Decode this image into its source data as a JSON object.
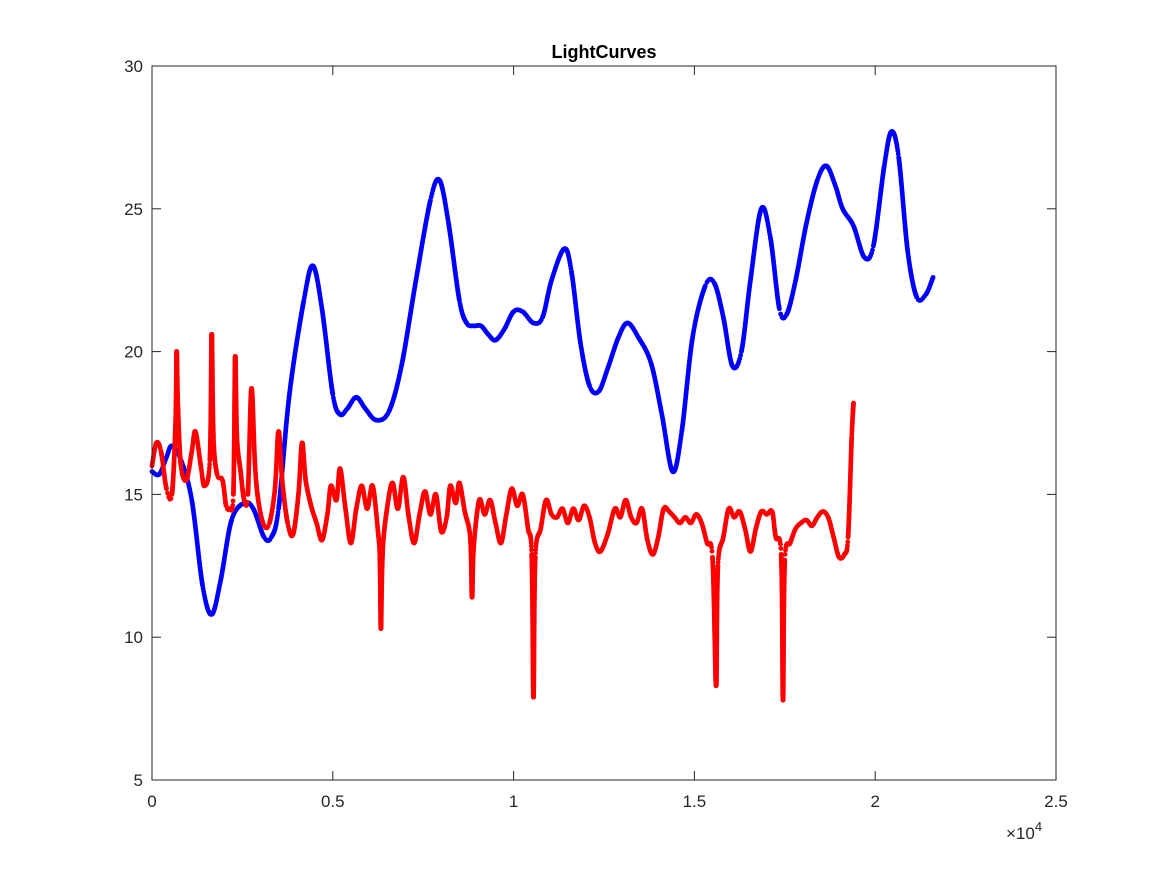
{
  "chart_data": {
    "type": "scatter",
    "title": "LightCurves",
    "xlabel": "",
    "ylabel": "",
    "xlim": [
      0,
      25000
    ],
    "ylim": [
      5,
      30
    ],
    "x_exponent_label": "×10",
    "x_exponent_power": "4",
    "x_ticks": [
      0,
      5000,
      10000,
      15000,
      20000,
      25000
    ],
    "x_tick_labels": [
      "0",
      "0.5",
      "1",
      "1.5",
      "2",
      "2.5"
    ],
    "y_ticks": [
      5,
      10,
      15,
      20,
      25,
      30
    ],
    "y_tick_labels": [
      "5",
      "10",
      "15",
      "20",
      "25",
      "30"
    ],
    "grid": false,
    "box": true,
    "series": [
      {
        "color": "#0000ff",
        "marker": "dot",
        "points": [
          [
            0,
            15.8
          ],
          [
            200,
            15.7
          ],
          [
            400,
            16.3
          ],
          [
            550,
            16.7
          ],
          [
            800,
            16.2
          ],
          [
            1100,
            14.8
          ],
          [
            1400,
            11.8
          ],
          [
            1650,
            10.8
          ],
          [
            1900,
            12.0
          ],
          [
            2200,
            14.1
          ],
          [
            2550,
            14.7
          ],
          [
            2800,
            14.5
          ],
          [
            3100,
            13.5
          ],
          [
            3300,
            13.5
          ],
          [
            3500,
            14.5
          ],
          [
            3800,
            18.5
          ],
          [
            4200,
            21.8
          ],
          [
            4450,
            23.0
          ],
          [
            4700,
            21.5
          ],
          [
            5000,
            18.5
          ],
          [
            5200,
            17.8
          ],
          [
            5400,
            18.0
          ],
          [
            5650,
            18.4
          ],
          [
            5900,
            18.0
          ],
          [
            6200,
            17.6
          ],
          [
            6550,
            17.9
          ],
          [
            6900,
            19.5
          ],
          [
            7300,
            22.5
          ],
          [
            7700,
            25.3
          ],
          [
            7950,
            26.0
          ],
          [
            8200,
            24.5
          ],
          [
            8500,
            21.8
          ],
          [
            8700,
            21.0
          ],
          [
            8900,
            20.9
          ],
          [
            9100,
            20.9
          ],
          [
            9300,
            20.6
          ],
          [
            9500,
            20.4
          ],
          [
            9750,
            20.8
          ],
          [
            10000,
            21.4
          ],
          [
            10250,
            21.4
          ],
          [
            10550,
            21.0
          ],
          [
            10800,
            21.2
          ],
          [
            11050,
            22.5
          ],
          [
            11400,
            23.6
          ],
          [
            11600,
            22.8
          ],
          [
            11850,
            20.3
          ],
          [
            12100,
            18.8
          ],
          [
            12350,
            18.6
          ],
          [
            12600,
            19.4
          ],
          [
            12900,
            20.5
          ],
          [
            13150,
            21.0
          ],
          [
            13450,
            20.5
          ],
          [
            13800,
            19.6
          ],
          [
            14100,
            17.8
          ],
          [
            14400,
            15.8
          ],
          [
            14650,
            17.2
          ],
          [
            14950,
            20.5
          ],
          [
            15300,
            22.3
          ],
          [
            15550,
            22.4
          ],
          [
            15800,
            21.2
          ],
          [
            16050,
            19.5
          ],
          [
            16300,
            20.0
          ],
          [
            16550,
            22.5
          ],
          [
            16850,
            25.0
          ],
          [
            17100,
            24.0
          ],
          [
            17350,
            21.5
          ],
          [
            17550,
            21.3
          ],
          [
            17800,
            22.5
          ],
          [
            18100,
            24.5
          ],
          [
            18400,
            26.0
          ],
          [
            18650,
            26.5
          ],
          [
            18900,
            25.8
          ],
          [
            19100,
            25.0
          ],
          [
            19400,
            24.4
          ],
          [
            19700,
            23.3
          ],
          [
            19950,
            23.7
          ],
          [
            20250,
            26.5
          ],
          [
            20450,
            27.7
          ],
          [
            20650,
            26.8
          ],
          [
            20900,
            23.5
          ],
          [
            21150,
            21.9
          ],
          [
            21400,
            22.0
          ],
          [
            21600,
            22.6
          ]
        ]
      },
      {
        "color": "#ff0000",
        "marker": "dot",
        "points": [
          [
            0,
            16.0
          ],
          [
            120,
            16.8
          ],
          [
            250,
            16.5
          ],
          [
            400,
            15.2
          ],
          [
            550,
            15.0
          ],
          [
            650,
            17.5
          ],
          [
            680,
            20.0
          ],
          [
            720,
            18.0
          ],
          [
            800,
            16.0
          ],
          [
            950,
            15.5
          ],
          [
            1100,
            16.5
          ],
          [
            1200,
            17.2
          ],
          [
            1350,
            16.0
          ],
          [
            1450,
            15.3
          ],
          [
            1600,
            16.2
          ],
          [
            1650,
            20.6
          ],
          [
            1700,
            17.0
          ],
          [
            1800,
            15.7
          ],
          [
            1950,
            15.5
          ],
          [
            2050,
            14.6
          ],
          [
            2150,
            14.5
          ],
          [
            2250,
            15.0
          ],
          [
            2300,
            19.8
          ],
          [
            2350,
            17.0
          ],
          [
            2450,
            15.8
          ],
          [
            2550,
            14.8
          ],
          [
            2650,
            15.0
          ],
          [
            2750,
            18.7
          ],
          [
            2850,
            16.0
          ],
          [
            2950,
            14.7
          ],
          [
            3100,
            13.9
          ],
          [
            3250,
            14.0
          ],
          [
            3400,
            15.2
          ],
          [
            3500,
            17.2
          ],
          [
            3600,
            15.5
          ],
          [
            3750,
            14.0
          ],
          [
            3900,
            13.6
          ],
          [
            4050,
            15.0
          ],
          [
            4150,
            16.8
          ],
          [
            4250,
            15.5
          ],
          [
            4400,
            14.6
          ],
          [
            4550,
            14.0
          ],
          [
            4700,
            13.4
          ],
          [
            4850,
            14.3
          ],
          [
            4950,
            15.3
          ],
          [
            5100,
            14.8
          ],
          [
            5200,
            15.9
          ],
          [
            5350,
            14.5
          ],
          [
            5500,
            13.3
          ],
          [
            5650,
            14.5
          ],
          [
            5800,
            15.3
          ],
          [
            5950,
            14.5
          ],
          [
            6100,
            15.3
          ],
          [
            6250,
            13.7
          ],
          [
            6300,
            12.8
          ],
          [
            6330,
            10.3
          ],
          [
            6380,
            13.0
          ],
          [
            6500,
            14.5
          ],
          [
            6650,
            15.4
          ],
          [
            6800,
            14.5
          ],
          [
            6950,
            15.6
          ],
          [
            7100,
            14.2
          ],
          [
            7250,
            13.3
          ],
          [
            7400,
            14.3
          ],
          [
            7550,
            15.1
          ],
          [
            7700,
            14.3
          ],
          [
            7850,
            15.0
          ],
          [
            8000,
            13.7
          ],
          [
            8150,
            14.2
          ],
          [
            8250,
            15.3
          ],
          [
            8400,
            14.7
          ],
          [
            8500,
            15.4
          ],
          [
            8650,
            14.4
          ],
          [
            8800,
            13.5
          ],
          [
            8850,
            11.4
          ],
          [
            8900,
            13.2
          ],
          [
            9050,
            14.8
          ],
          [
            9200,
            14.3
          ],
          [
            9350,
            14.8
          ],
          [
            9500,
            14.0
          ],
          [
            9650,
            13.3
          ],
          [
            9800,
            14.3
          ],
          [
            9950,
            15.2
          ],
          [
            10100,
            14.6
          ],
          [
            10250,
            15.0
          ],
          [
            10400,
            13.8
          ],
          [
            10500,
            12.9
          ],
          [
            10550,
            7.9
          ],
          [
            10600,
            12.8
          ],
          [
            10750,
            13.8
          ],
          [
            10900,
            14.8
          ],
          [
            11050,
            14.3
          ],
          [
            11200,
            14.2
          ],
          [
            11350,
            14.5
          ],
          [
            11500,
            14.0
          ],
          [
            11650,
            14.5
          ],
          [
            11800,
            14.1
          ],
          [
            11950,
            14.6
          ],
          [
            12100,
            14.2
          ],
          [
            12250,
            13.3
          ],
          [
            12400,
            13.0
          ],
          [
            12600,
            13.6
          ],
          [
            12800,
            14.5
          ],
          [
            12950,
            14.2
          ],
          [
            13100,
            14.8
          ],
          [
            13250,
            14.2
          ],
          [
            13400,
            14.0
          ],
          [
            13550,
            14.5
          ],
          [
            13700,
            13.4
          ],
          [
            13850,
            12.9
          ],
          [
            14000,
            13.5
          ],
          [
            14150,
            14.5
          ],
          [
            14300,
            14.4
          ],
          [
            14450,
            14.2
          ],
          [
            14600,
            14.0
          ],
          [
            14750,
            14.2
          ],
          [
            14900,
            14.0
          ],
          [
            15050,
            14.3
          ],
          [
            15200,
            14.0
          ],
          [
            15350,
            13.3
          ],
          [
            15500,
            12.8
          ],
          [
            15600,
            8.3
          ],
          [
            15650,
            12.5
          ],
          [
            15800,
            13.5
          ],
          [
            15950,
            14.5
          ],
          [
            16100,
            14.2
          ],
          [
            16250,
            14.4
          ],
          [
            16400,
            13.8
          ],
          [
            16550,
            13.0
          ],
          [
            16700,
            13.8
          ],
          [
            16850,
            14.4
          ],
          [
            17000,
            14.3
          ],
          [
            17150,
            14.4
          ],
          [
            17250,
            13.5
          ],
          [
            17400,
            12.9
          ],
          [
            17450,
            7.8
          ],
          [
            17500,
            12.7
          ],
          [
            17650,
            13.3
          ],
          [
            17800,
            13.8
          ],
          [
            17950,
            14.0
          ],
          [
            18100,
            14.1
          ],
          [
            18250,
            13.9
          ],
          [
            18400,
            14.2
          ],
          [
            18550,
            14.4
          ],
          [
            18700,
            14.2
          ],
          [
            18850,
            13.5
          ],
          [
            19000,
            12.8
          ],
          [
            19150,
            12.9
          ],
          [
            19250,
            13.5
          ],
          [
            19350,
            17.0
          ],
          [
            19400,
            18.2
          ]
        ]
      }
    ]
  }
}
